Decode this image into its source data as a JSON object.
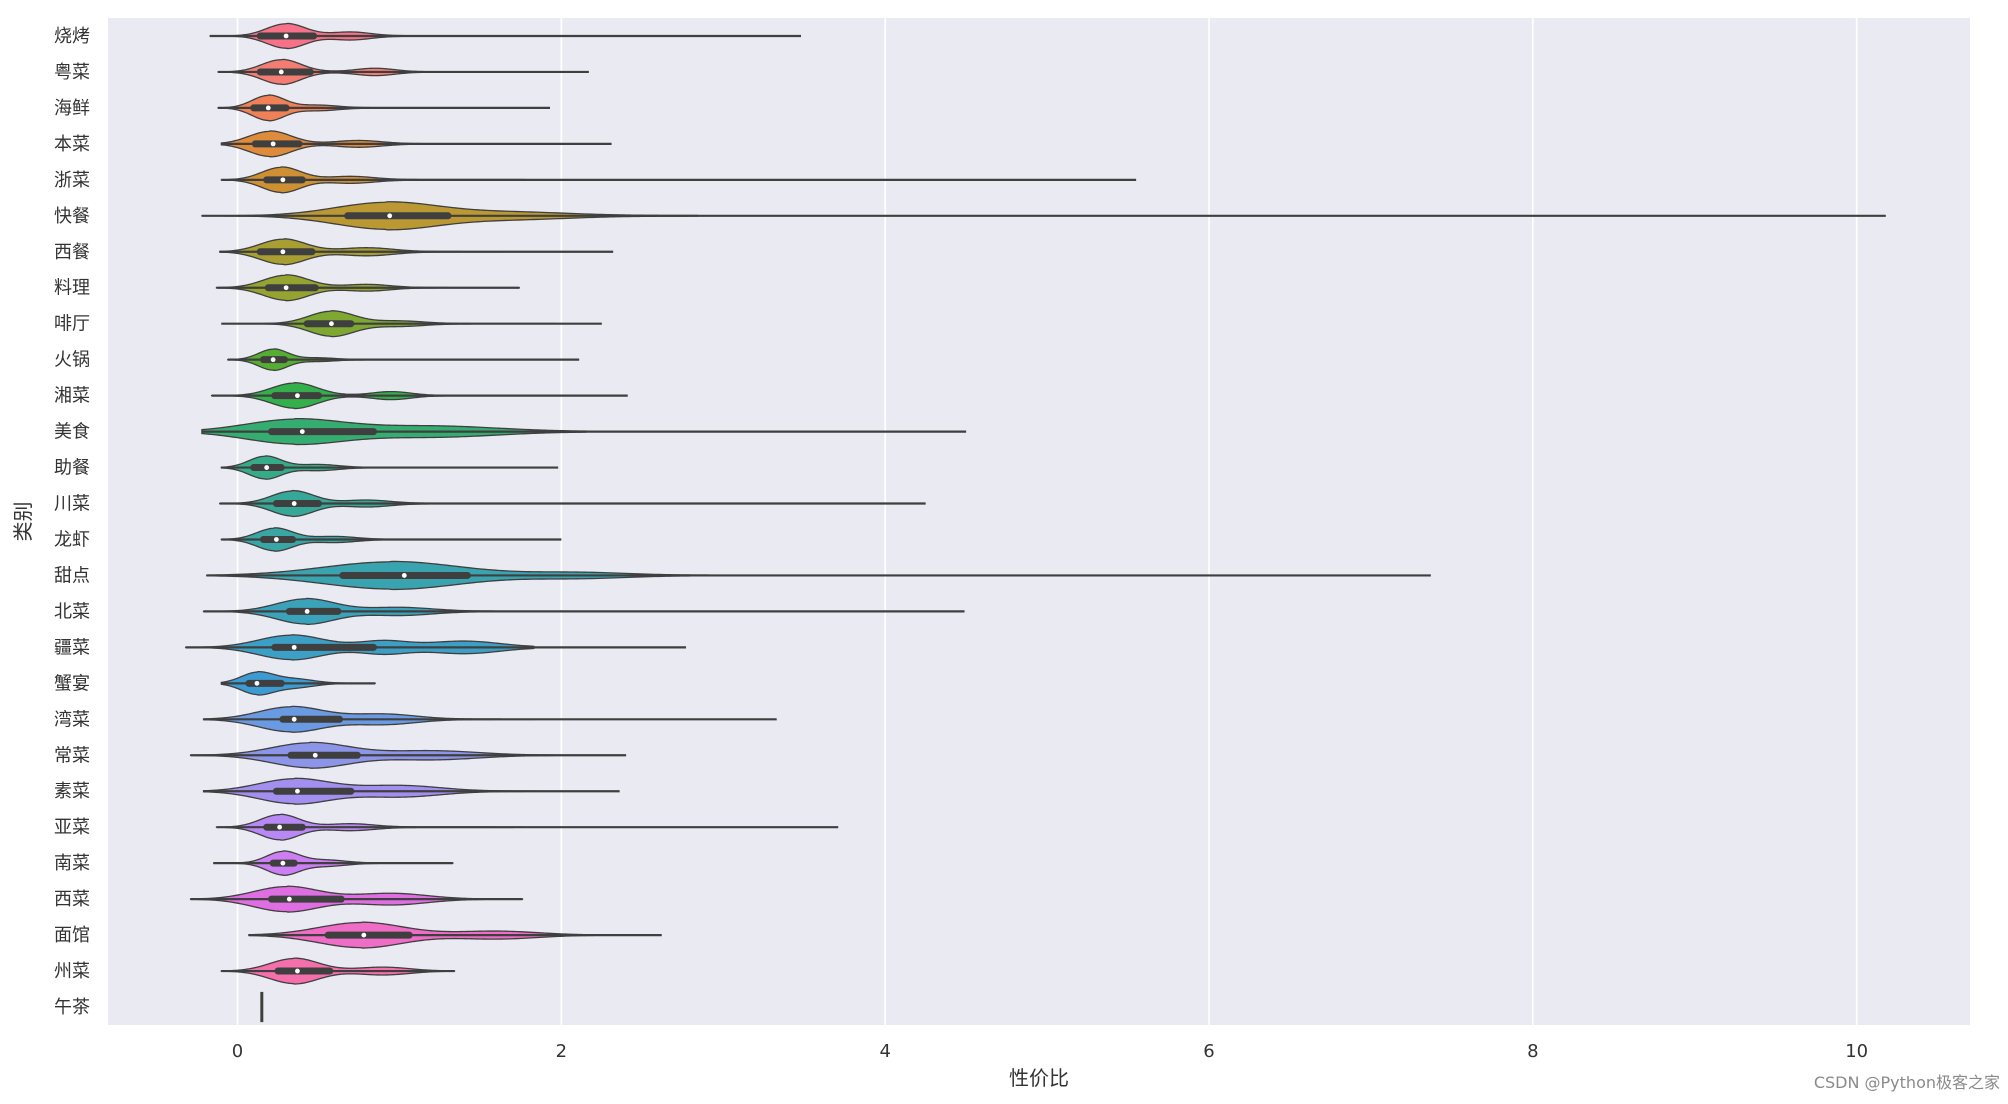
{
  "chart_data": {
    "type": "violin",
    "orientation": "horizontal",
    "title": "",
    "xlabel": "性价比",
    "ylabel": "类别",
    "xlim": [
      -0.8,
      10.7
    ],
    "xticks": [
      0,
      2,
      4,
      6,
      8,
      10
    ],
    "grid": true,
    "legend": "none",
    "background": "#eaeaf2",
    "categories": [
      {
        "name": "烧烤",
        "color": "#f77189",
        "lower": -0.17,
        "upper": 3.48,
        "q1": 0.14,
        "median": 0.3,
        "q3": 0.47,
        "peak": 0.3,
        "bw": 0.12,
        "halfwidth": 0.7,
        "bumps": [
          [
            0.7,
            0.3,
            0.12
          ]
        ]
      },
      {
        "name": "粤菜",
        "color": "#f37c74",
        "lower": -0.12,
        "upper": 2.17,
        "q1": 0.14,
        "median": 0.27,
        "q3": 0.45,
        "peak": 0.27,
        "bw": 0.12,
        "halfwidth": 0.7,
        "bumps": [
          [
            0.85,
            0.28,
            0.12
          ]
        ]
      },
      {
        "name": "海鲜",
        "color": "#f08055",
        "lower": -0.12,
        "upper": 1.93,
        "q1": 0.1,
        "median": 0.19,
        "q3": 0.3,
        "peak": 0.19,
        "bw": 0.1,
        "halfwidth": 0.72,
        "bumps": [
          [
            0.5,
            0.2,
            0.12
          ]
        ]
      },
      {
        "name": "本菜",
        "color": "#de8b3b",
        "lower": -0.1,
        "upper": 2.31,
        "q1": 0.11,
        "median": 0.22,
        "q3": 0.38,
        "peak": 0.2,
        "bw": 0.13,
        "halfwidth": 0.72,
        "bumps": [
          [
            0.75,
            0.25,
            0.14
          ]
        ]
      },
      {
        "name": "浙菜",
        "color": "#ce9032",
        "lower": -0.1,
        "upper": 5.55,
        "q1": 0.18,
        "median": 0.28,
        "q3": 0.4,
        "peak": 0.27,
        "bw": 0.12,
        "halfwidth": 0.72,
        "bumps": [
          [
            0.7,
            0.25,
            0.14
          ]
        ]
      },
      {
        "name": "快餐",
        "color": "#bb9832",
        "lower": -0.22,
        "upper": 10.18,
        "q1": 0.68,
        "median": 0.94,
        "q3": 1.3,
        "peak": 0.92,
        "bw": 0.32,
        "halfwidth": 0.78,
        "bumps": [
          [
            1.7,
            0.25,
            0.35
          ]
        ]
      },
      {
        "name": "西餐",
        "color": "#a89e31",
        "lower": -0.11,
        "upper": 2.32,
        "q1": 0.14,
        "median": 0.28,
        "q3": 0.46,
        "peak": 0.28,
        "bw": 0.14,
        "halfwidth": 0.72,
        "bumps": [
          [
            0.8,
            0.3,
            0.16
          ]
        ]
      },
      {
        "name": "料理",
        "color": "#96a331",
        "lower": -0.13,
        "upper": 1.74,
        "q1": 0.19,
        "median": 0.3,
        "q3": 0.48,
        "peak": 0.3,
        "bw": 0.14,
        "halfwidth": 0.72,
        "bumps": [
          [
            0.8,
            0.25,
            0.14
          ]
        ]
      },
      {
        "name": "啡厅",
        "color": "#7ea831",
        "lower": -0.1,
        "upper": 2.25,
        "q1": 0.43,
        "median": 0.58,
        "q3": 0.7,
        "peak": 0.58,
        "bw": 0.14,
        "halfwidth": 0.72,
        "bumps": [
          [
            1.0,
            0.2,
            0.15
          ]
        ]
      },
      {
        "name": "火锅",
        "color": "#55ae32",
        "lower": -0.06,
        "upper": 2.11,
        "q1": 0.16,
        "median": 0.22,
        "q3": 0.29,
        "peak": 0.22,
        "bw": 0.09,
        "halfwidth": 0.6,
        "bumps": [
          [
            0.5,
            0.15,
            0.1
          ]
        ]
      },
      {
        "name": "湘菜",
        "color": "#33b04b",
        "lower": -0.16,
        "upper": 2.41,
        "q1": 0.23,
        "median": 0.37,
        "q3": 0.5,
        "peak": 0.35,
        "bw": 0.14,
        "halfwidth": 0.72,
        "bumps": [
          [
            0.95,
            0.3,
            0.12
          ]
        ]
      },
      {
        "name": "美食",
        "color": "#35ad71",
        "lower": -0.22,
        "upper": 4.5,
        "q1": 0.21,
        "median": 0.4,
        "q3": 0.84,
        "peak": 0.35,
        "bw": 0.3,
        "halfwidth": 0.72,
        "bumps": [
          [
            1.2,
            0.45,
            0.4
          ]
        ]
      },
      {
        "name": "助餐",
        "color": "#36ab88",
        "lower": -0.1,
        "upper": 1.98,
        "q1": 0.1,
        "median": 0.18,
        "q3": 0.27,
        "peak": 0.17,
        "bw": 0.1,
        "halfwidth": 0.65,
        "bumps": [
          [
            0.5,
            0.25,
            0.12
          ]
        ]
      },
      {
        "name": "川菜",
        "color": "#37a898",
        "lower": -0.11,
        "upper": 4.25,
        "q1": 0.24,
        "median": 0.35,
        "q3": 0.5,
        "peak": 0.34,
        "bw": 0.13,
        "halfwidth": 0.72,
        "bumps": [
          [
            0.8,
            0.25,
            0.14
          ]
        ]
      },
      {
        "name": "龙虾",
        "color": "#38a6a5",
        "lower": -0.1,
        "upper": 2.0,
        "q1": 0.16,
        "median": 0.24,
        "q3": 0.34,
        "peak": 0.23,
        "bw": 0.11,
        "halfwidth": 0.65,
        "bumps": [
          [
            0.6,
            0.25,
            0.13
          ]
        ]
      },
      {
        "name": "甜点",
        "color": "#39a4b0",
        "lower": -0.19,
        "upper": 7.37,
        "q1": 0.65,
        "median": 1.03,
        "q3": 1.42,
        "peak": 0.95,
        "bw": 0.42,
        "halfwidth": 0.78,
        "bumps": [
          [
            2.1,
            0.2,
            0.3
          ]
        ]
      },
      {
        "name": "北菜",
        "color": "#3aa2ba",
        "lower": -0.21,
        "upper": 4.49,
        "q1": 0.32,
        "median": 0.43,
        "q3": 0.62,
        "peak": 0.42,
        "bw": 0.18,
        "halfwidth": 0.72,
        "bumps": [
          [
            1.0,
            0.3,
            0.2
          ]
        ]
      },
      {
        "name": "疆菜",
        "color": "#3c9fc6",
        "lower": -0.32,
        "upper": 2.77,
        "q1": 0.23,
        "median": 0.35,
        "q3": 0.84,
        "peak": 0.33,
        "bw": 0.2,
        "halfwidth": 0.7,
        "bumps": [
          [
            1.4,
            0.5,
            0.22
          ],
          [
            0.9,
            0.5,
            0.15
          ]
        ]
      },
      {
        "name": "蟹宴",
        "color": "#3d9bd3",
        "lower": -0.1,
        "upper": 0.85,
        "q1": 0.07,
        "median": 0.12,
        "q3": 0.27,
        "peak": 0.12,
        "bw": 0.1,
        "halfwidth": 0.65,
        "bumps": [
          [
            0.35,
            0.4,
            0.12
          ]
        ]
      },
      {
        "name": "湾菜",
        "color": "#6a9ae1",
        "lower": -0.21,
        "upper": 3.33,
        "q1": 0.28,
        "median": 0.35,
        "q3": 0.63,
        "peak": 0.33,
        "bw": 0.2,
        "halfwidth": 0.72,
        "bumps": [
          [
            0.9,
            0.4,
            0.2
          ]
        ]
      },
      {
        "name": "常菜",
        "color": "#8c95e8",
        "lower": -0.29,
        "upper": 2.4,
        "q1": 0.33,
        "median": 0.48,
        "q3": 0.74,
        "peak": 0.45,
        "bw": 0.24,
        "halfwidth": 0.72,
        "bumps": [
          [
            1.2,
            0.35,
            0.28
          ]
        ]
      },
      {
        "name": "素菜",
        "color": "#a38ff0",
        "lower": -0.21,
        "upper": 2.36,
        "q1": 0.24,
        "median": 0.37,
        "q3": 0.7,
        "peak": 0.35,
        "bw": 0.22,
        "halfwidth": 0.72,
        "bumps": [
          [
            1.0,
            0.45,
            0.25
          ]
        ]
      },
      {
        "name": "亚菜",
        "color": "#b888f4",
        "lower": -0.13,
        "upper": 3.71,
        "q1": 0.18,
        "median": 0.26,
        "q3": 0.4,
        "peak": 0.26,
        "bw": 0.12,
        "halfwidth": 0.72,
        "bumps": [
          [
            0.7,
            0.25,
            0.14
          ]
        ]
      },
      {
        "name": "南菜",
        "color": "#cc7ff3",
        "lower": -0.15,
        "upper": 1.33,
        "q1": 0.22,
        "median": 0.28,
        "q3": 0.35,
        "peak": 0.28,
        "bw": 0.1,
        "halfwidth": 0.68,
        "bumps": [
          [
            0.55,
            0.25,
            0.12
          ]
        ]
      },
      {
        "name": "西菜",
        "color": "#e06ee3",
        "lower": -0.29,
        "upper": 1.76,
        "q1": 0.21,
        "median": 0.32,
        "q3": 0.64,
        "peak": 0.3,
        "bw": 0.2,
        "halfwidth": 0.72,
        "bumps": [
          [
            0.95,
            0.45,
            0.22
          ]
        ]
      },
      {
        "name": "面馆",
        "color": "#ef6dc6",
        "lower": 0.07,
        "upper": 2.62,
        "q1": 0.56,
        "median": 0.78,
        "q3": 1.06,
        "peak": 0.76,
        "bw": 0.26,
        "halfwidth": 0.72,
        "bumps": [
          [
            1.6,
            0.3,
            0.25
          ]
        ]
      },
      {
        "name": "州菜",
        "color": "#f46fac",
        "lower": -0.1,
        "upper": 1.34,
        "q1": 0.25,
        "median": 0.37,
        "q3": 0.57,
        "peak": 0.35,
        "bw": 0.15,
        "halfwidth": 0.72,
        "bumps": [
          [
            0.9,
            0.3,
            0.16
          ]
        ]
      },
      {
        "name": "午茶",
        "color": "#f77189",
        "lower": 0.15,
        "upper": 0.15,
        "q1": 0.15,
        "median": 0.15,
        "q3": 0.15,
        "peak": 0.15,
        "bw": 0.0,
        "halfwidth": 0.0,
        "bumps": [],
        "single_value": true
      }
    ]
  },
  "watermark": "CSDN @Python极客之家"
}
